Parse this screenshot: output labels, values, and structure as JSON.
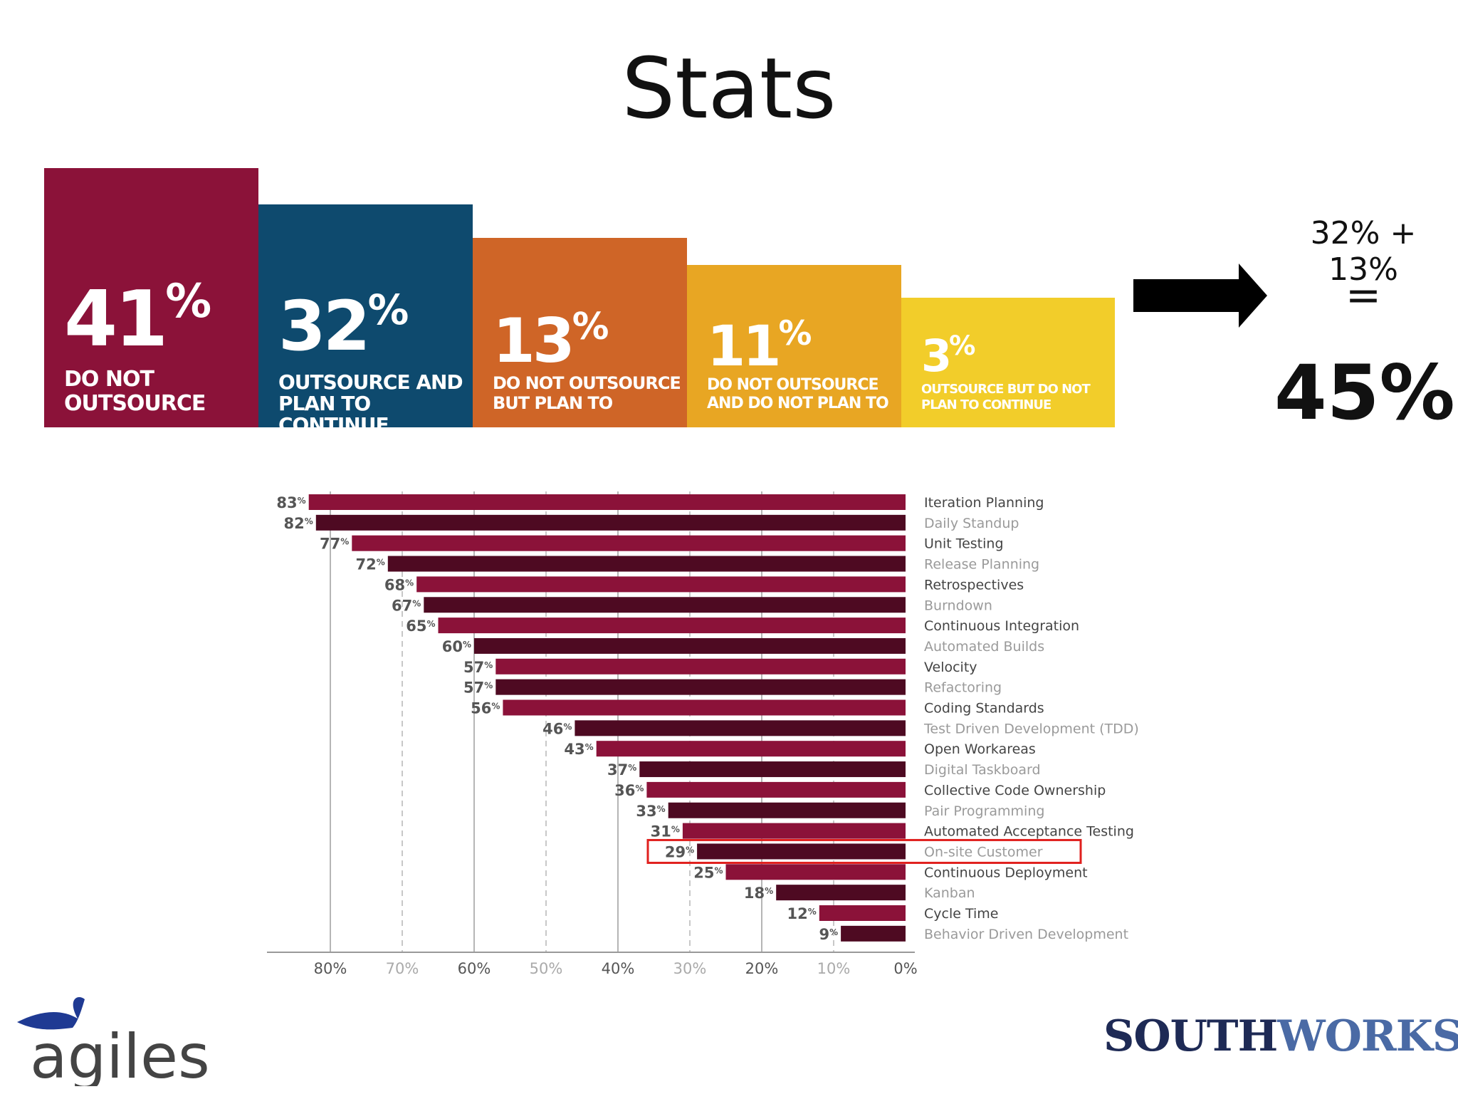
{
  "title": "Stats",
  "blocks": [
    {
      "value": "41",
      "unit": "%",
      "label": "DO NOT OUTSOURCE",
      "color": "#8b1239"
    },
    {
      "value": "32",
      "unit": "%",
      "label": "OUTSOURCE AND PLAN TO CONTINUE",
      "color": "#0e4a6e"
    },
    {
      "value": "13",
      "unit": "%",
      "label": "DO NOT OUTSOURCE BUT PLAN TO",
      "color": "#cf6527"
    },
    {
      "value": "11",
      "unit": "%",
      "label": "DO NOT OUTSOURCE AND DO NOT PLAN TO",
      "color": "#e8a623"
    },
    {
      "value": "3",
      "unit": "%",
      "label": "OUTSOURCE BUT DO NOT PLAN TO CONTINUE",
      "color": "#f2cd2a"
    }
  ],
  "summary": {
    "expression": "32% + 13%",
    "equals": "=",
    "total": "45%"
  },
  "chart_data": {
    "type": "bar",
    "orientation": "horizontal",
    "title": "",
    "categories": [
      "Iteration Planning",
      "Daily Standup",
      "Unit Testing",
      "Release Planning",
      "Retrospectives",
      "Burndown",
      "Continuous Integration",
      "Automated Builds",
      "Velocity",
      "Refactoring",
      "Coding Standards",
      "Test Driven Development (TDD)",
      "Open Workareas",
      "Digital Taskboard",
      "Collective Code Ownership",
      "Pair Programming",
      "Automated Acceptance Testing",
      "On-site Customer",
      "Continuous Deployment",
      "Kanban",
      "Cycle Time",
      "Behavior Driven Development"
    ],
    "values": [
      83,
      82,
      77,
      72,
      68,
      67,
      65,
      60,
      57,
      57,
      56,
      46,
      43,
      37,
      36,
      33,
      31,
      29,
      25,
      18,
      12,
      9
    ],
    "value_unit": "%",
    "axis_ticks": [
      "80%",
      "70%",
      "60%",
      "50%",
      "40%",
      "30%",
      "20%",
      "10%",
      "0%"
    ],
    "xlim": [
      0,
      83
    ],
    "highlighted": "On-site Customer",
    "colors": {
      "odd": "#8b1239",
      "even": "#4e0a22",
      "highlight": "#e0201e",
      "label_dark": "#444444",
      "label_light": "#9a9a9a"
    }
  },
  "logos": {
    "left": "agiles",
    "right_part1": "SOUTH",
    "right_part2": "WORKS"
  }
}
